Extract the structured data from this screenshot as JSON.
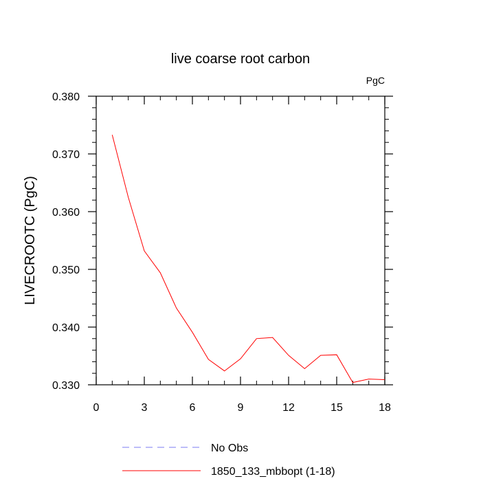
{
  "chart_data": {
    "type": "line",
    "title": "live coarse root carbon",
    "units_label": "PgC",
    "xlabel": "",
    "ylabel": "LIVECROOTC  (PgC)",
    "xlim": [
      0,
      18
    ],
    "ylim": [
      0.33,
      0.38
    ],
    "x_ticks": [
      0,
      3,
      6,
      9,
      12,
      15,
      18
    ],
    "y_ticks": [
      "0.330",
      "0.340",
      "0.350",
      "0.360",
      "0.370",
      "0.380"
    ],
    "grid": false,
    "legend": {
      "position": "bottom",
      "entries": [
        {
          "name": "No Obs",
          "color": "#7b7bf0",
          "style": "dashed"
        },
        {
          "name": "1850_133_mbbopt (1-18)",
          "color": "#ff0000",
          "style": "solid"
        }
      ]
    },
    "series": [
      {
        "name": "1850_133_mbbopt (1-18)",
        "color": "#ff0000",
        "x": [
          1,
          2,
          3,
          4,
          5,
          6,
          7,
          8,
          9,
          10,
          11,
          12,
          13,
          14,
          15,
          16,
          17,
          18
        ],
        "values": [
          0.3733,
          0.3625,
          0.3532,
          0.3494,
          0.3433,
          0.3391,
          0.3344,
          0.3324,
          0.3345,
          0.338,
          0.3382,
          0.3351,
          0.3328,
          0.3351,
          0.3352,
          0.3304,
          0.331,
          0.3309
        ]
      }
    ]
  }
}
